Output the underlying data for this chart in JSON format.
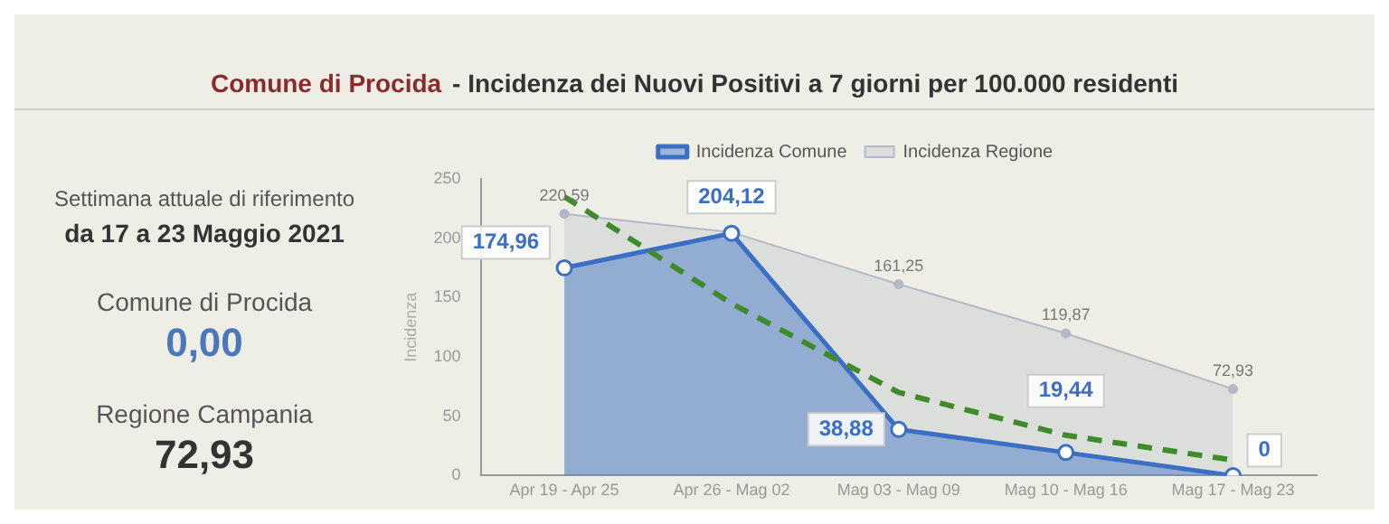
{
  "chart_data": [
    {
      "type": "other",
      "annotations": [
        "Settimana attuale di riferimento",
        "da 17 a 23 Maggio 2021",
        "Comune di Procida",
        "0,00",
        "Regione Campania",
        "72,93"
      ]
    },
    {
      "type": "line",
      "title": "Comune di Procida",
      "subtitle": "- Incidenza dei Nuovi Positivi a 7 giorni per 100.000 residenti",
      "ylabel": "Incidenza",
      "categories": [
        "Apr 19 - Apr 25",
        "Apr 26 - Mag 02",
        "Mag 03 - Mag 09",
        "Mag 10 - Mag 16",
        "Mag 17 - Mag 23"
      ],
      "ylim": [
        0,
        250
      ],
      "yticks": [
        0,
        50,
        100,
        150,
        200,
        250
      ],
      "legend": "top",
      "marker": "circle",
      "series": [
        {
          "name": "Incidenza Comune",
          "type": "area",
          "color": "#3a6fc4",
          "values": [
            174.96,
            204.12,
            38.88,
            19.44,
            0
          ],
          "value_labels": [
            "174,96",
            "204,12",
            "38,88",
            "19,44",
            "0"
          ]
        },
        {
          "name": "Incidenza Regione",
          "type": "area",
          "color": "#b4b8c6",
          "values": [
            220.59,
            205,
            161.25,
            119.87,
            72.93
          ],
          "value_labels": [
            "220,59",
            null,
            "161,25",
            "119,87",
            "72,93"
          ]
        },
        {
          "type": "line",
          "color": "#3f8a2a",
          "line_style": "dashed",
          "marker": "none",
          "values": [
            235,
            145,
            70,
            34,
            13
          ]
        }
      ]
    }
  ]
}
